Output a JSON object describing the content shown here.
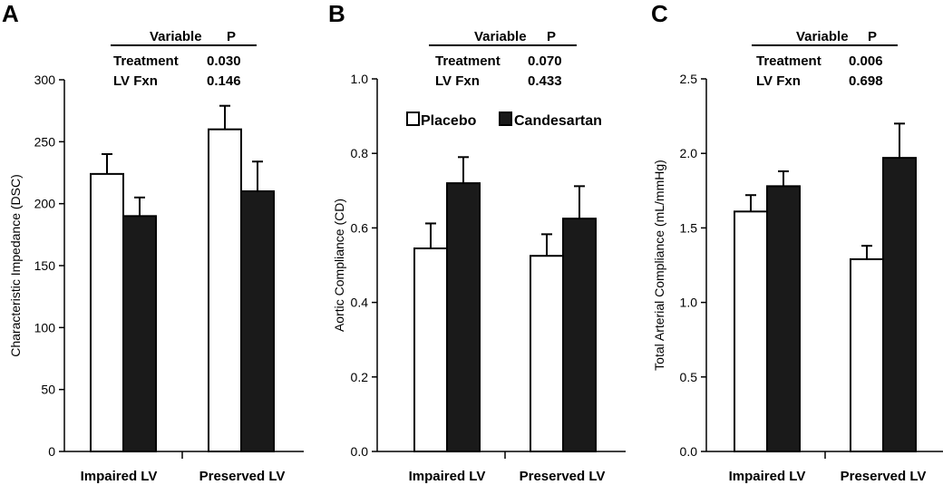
{
  "legend": {
    "entries": [
      {
        "label": "Placebo",
        "color": "#ffffff"
      },
      {
        "label": "Candesartan",
        "color": "#1a1a1a"
      }
    ]
  },
  "chart_data": [
    {
      "type": "bar",
      "panel": "A",
      "categories": [
        "Impaired LV",
        "Preserved LV"
      ],
      "series": [
        {
          "name": "Placebo",
          "values": [
            224,
            260
          ],
          "errors": [
            16,
            19
          ]
        },
        {
          "name": "Candesartan",
          "values": [
            190,
            210
          ],
          "errors": [
            15,
            24
          ]
        }
      ],
      "ylabel": "Characteristic Impedance (DSC)",
      "ylim": [
        0,
        300
      ],
      "yticks": [
        0,
        50,
        100,
        150,
        200,
        250,
        300
      ],
      "ytick_labels": [
        "0",
        "50",
        "100",
        "150",
        "200",
        "250",
        "300"
      ],
      "table": {
        "header": [
          "Variable",
          "P"
        ],
        "rows": [
          [
            "Treatment",
            "0.030"
          ],
          [
            "LV Fxn",
            "0.146"
          ]
        ]
      }
    },
    {
      "type": "bar",
      "panel": "B",
      "categories": [
        "Impaired LV",
        "Preserved LV"
      ],
      "series": [
        {
          "name": "Placebo",
          "values": [
            0.545,
            0.525
          ],
          "errors": [
            0.067,
            0.058
          ]
        },
        {
          "name": "Candesartan",
          "values": [
            0.72,
            0.625
          ],
          "errors": [
            0.07,
            0.087
          ]
        }
      ],
      "ylabel": "Aortic Compliance (CD)",
      "ylim": [
        0,
        1.0
      ],
      "yticks": [
        0,
        0.2,
        0.4,
        0.6,
        0.8,
        1.0
      ],
      "ytick_labels": [
        "0.0",
        "0.2",
        "0.4",
        "0.6",
        "0.8",
        "1.0"
      ],
      "table": {
        "header": [
          "Variable",
          "P"
        ],
        "rows": [
          [
            "Treatment",
            "0.070"
          ],
          [
            "LV Fxn",
            "0.433"
          ]
        ]
      }
    },
    {
      "type": "bar",
      "panel": "C",
      "categories": [
        "Impaired LV",
        "Preserved LV"
      ],
      "series": [
        {
          "name": "Placebo",
          "values": [
            1.61,
            1.29
          ],
          "errors": [
            0.11,
            0.09
          ]
        },
        {
          "name": "Candesartan",
          "values": [
            1.78,
            1.97
          ],
          "errors": [
            0.1,
            0.23
          ]
        }
      ],
      "ylabel": "Total Arterial Compliance (mL/mmHg)",
      "ylim": [
        0,
        2.5
      ],
      "yticks": [
        0,
        0.5,
        1.0,
        1.5,
        2.0,
        2.5
      ],
      "ytick_labels": [
        "0.0",
        "0.5",
        "1.0",
        "1.5",
        "2.0",
        "2.5"
      ],
      "table": {
        "header": [
          "Variable",
          "P"
        ],
        "rows": [
          [
            "Treatment",
            "0.006"
          ],
          [
            "LV Fxn",
            "0.698"
          ]
        ]
      }
    }
  ]
}
